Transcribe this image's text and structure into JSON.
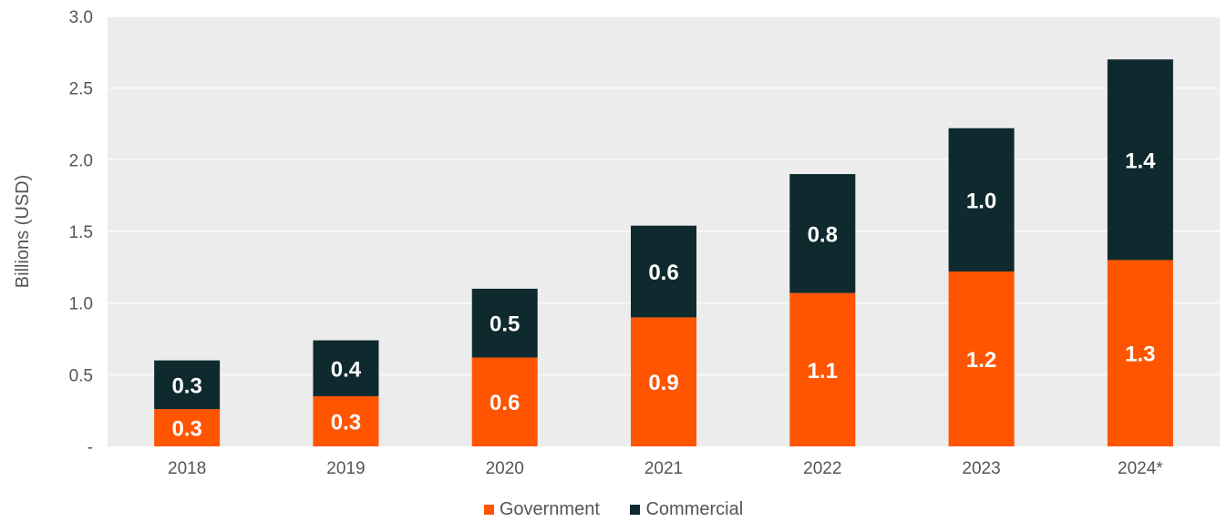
{
  "chart_data": {
    "type": "bar",
    "stacked": true,
    "categories": [
      "2018",
      "2019",
      "2020",
      "2021",
      "2022",
      "2023",
      "2024*"
    ],
    "series": [
      {
        "name": "Government",
        "values": [
          0.26,
          0.35,
          0.62,
          0.9,
          1.07,
          1.22,
          1.3
        ],
        "labels": [
          "0.3",
          "0.3",
          "0.6",
          "0.9",
          "1.1",
          "1.2",
          "1.3"
        ],
        "color": "#ff5500"
      },
      {
        "name": "Commercial",
        "values": [
          0.34,
          0.39,
          0.48,
          0.64,
          0.83,
          1.0,
          1.4
        ],
        "labels": [
          "0.3",
          "0.4",
          "0.5",
          "0.6",
          "0.8",
          "1.0",
          "1.4"
        ],
        "color": "#0f2a2e"
      }
    ],
    "ylabel": "Billions (USD)",
    "ylim": [
      0,
      3.0
    ],
    "yticks": [
      0,
      0.5,
      1.0,
      1.5,
      2.0,
      2.5,
      3.0
    ],
    "ytick_labels": [
      "-",
      "0.5",
      "1.0",
      "1.5",
      "2.0",
      "2.5",
      "3.0"
    ],
    "grid": true,
    "legend_position": "bottom-center",
    "plot_background": "#ececec"
  }
}
